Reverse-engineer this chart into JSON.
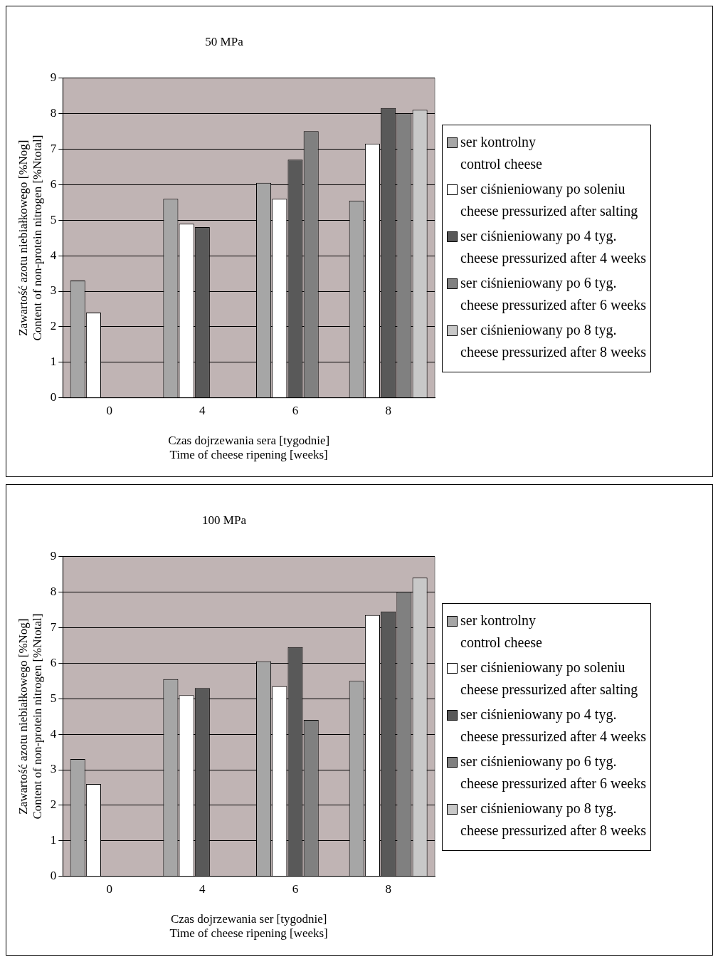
{
  "chart_data": [
    {
      "type": "bar",
      "title": "50 MPa",
      "xlabel": "Czas dojrzewania sera [tygodnie]\nTime of cheese ripening [weeks]",
      "ylabel": "Zawartość azotu niebiałkowego [%Nog]\nContent of non-protein nitrogen [%Ntotal]",
      "categories": [
        "0",
        "4",
        "6",
        "8"
      ],
      "ylim": [
        0,
        9
      ],
      "yticks": [
        0,
        1,
        2,
        3,
        4,
        5,
        6,
        7,
        8,
        9
      ],
      "grid": "y",
      "legend": "right",
      "series": [
        {
          "name": "ser kontrolny\ncontrol cheese",
          "color": "#a6a6a6",
          "values": [
            3.3,
            5.6,
            6.05,
            5.55
          ]
        },
        {
          "name": "ser ciśnieniowany po soleniu\ncheese pressurized after salting",
          "color": "#ffffff",
          "values": [
            2.4,
            4.9,
            5.6,
            7.15
          ]
        },
        {
          "name": "ser ciśnieniowany po 4 tyg.\ncheese pressurized after 4 weeks",
          "color": "#595959",
          "values": [
            null,
            4.8,
            6.7,
            8.15
          ]
        },
        {
          "name": "ser ciśnieniowany po 6 tyg.\ncheese pressurized after 6 weeks",
          "color": "#808080",
          "values": [
            null,
            null,
            7.5,
            8.0
          ]
        },
        {
          "name": "ser ciśnieniowany po 8 tyg.\ncheese pressurized after 8 weeks",
          "color": "#c8c8c8",
          "values": [
            null,
            null,
            null,
            8.1
          ]
        }
      ]
    },
    {
      "type": "bar",
      "title": "100 MPa",
      "xlabel": "Czas dojrzewania ser [tygodnie]\nTime of cheese ripening [weeks]",
      "ylabel": "Zawartość azotu niebiałkowego [%Nog]\nContent of non-protein nitrogen [%Ntotal]",
      "categories": [
        "0",
        "4",
        "6",
        "8"
      ],
      "ylim": [
        0,
        9
      ],
      "yticks": [
        0,
        1,
        2,
        3,
        4,
        5,
        6,
        7,
        8,
        9
      ],
      "grid": "y",
      "legend": "right",
      "series": [
        {
          "name": "ser kontrolny\ncontrol cheese",
          "color": "#a6a6a6",
          "values": [
            3.3,
            5.55,
            6.05,
            5.5
          ]
        },
        {
          "name": "ser ciśnieniowany po soleniu\ncheese pressurized after salting",
          "color": "#ffffff",
          "values": [
            2.6,
            5.1,
            5.35,
            7.35
          ]
        },
        {
          "name": "ser ciśnieniowany po 4 tyg.\ncheese pressurized after 4 weeks",
          "color": "#595959",
          "values": [
            null,
            5.3,
            6.45,
            7.45
          ]
        },
        {
          "name": "ser ciśnieniowany po 6 tyg.\ncheese pressurized after 6 weeks",
          "color": "#808080",
          "values": [
            null,
            null,
            4.4,
            8.0
          ]
        },
        {
          "name": "ser ciśnieniowany po 8 tyg.\ncheese pressurized after 8 weeks",
          "color": "#c8c8c8",
          "values": [
            null,
            null,
            null,
            8.4
          ]
        }
      ]
    }
  ]
}
